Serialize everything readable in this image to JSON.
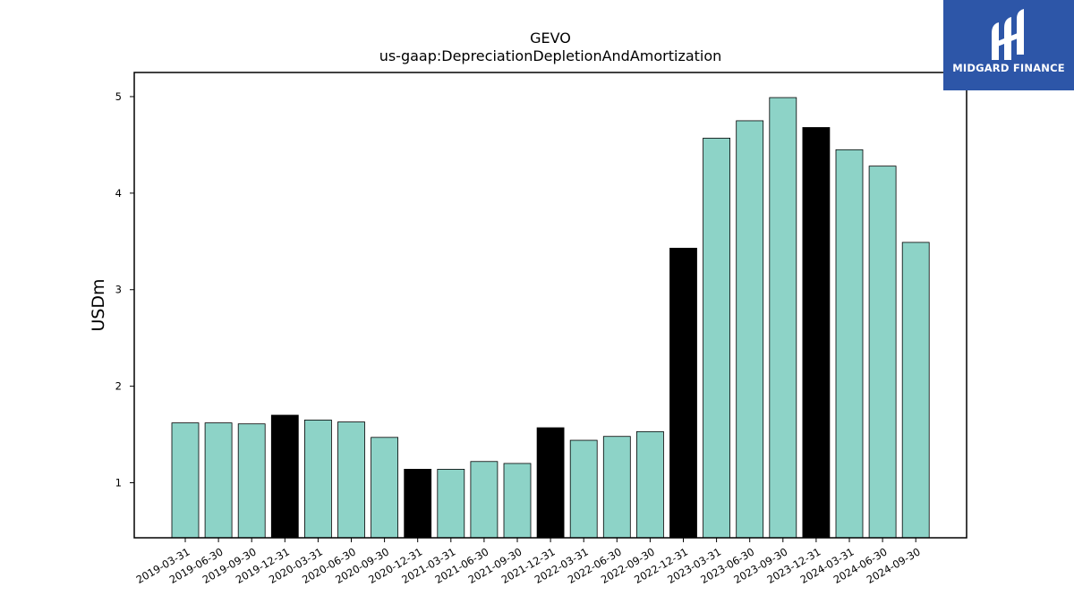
{
  "chart_data": {
    "type": "bar",
    "title": "GEVO",
    "subtitle": "us-gaap:DepreciationDepletionAndAmortization",
    "ylabel": "USDm",
    "xlabel": "",
    "ylim": [
      0.43,
      5.25
    ],
    "yticks": [
      1,
      2,
      3,
      4,
      5
    ],
    "categories": [
      "2019-03-31",
      "2019-06-30",
      "2019-09-30",
      "2019-12-31",
      "2020-03-31",
      "2020-06-30",
      "2020-09-30",
      "2020-12-31",
      "2021-03-31",
      "2021-06-30",
      "2021-09-30",
      "2021-12-31",
      "2022-03-31",
      "2022-06-30",
      "2022-09-30",
      "2022-12-31",
      "2023-03-31",
      "2023-06-30",
      "2023-09-30",
      "2023-12-31",
      "2024-03-31",
      "2024-06-30",
      "2024-09-30"
    ],
    "values": [
      1.62,
      1.62,
      1.61,
      1.7,
      1.65,
      1.63,
      1.47,
      1.14,
      1.14,
      1.22,
      1.2,
      1.57,
      1.44,
      1.48,
      1.53,
      3.43,
      4.57,
      4.75,
      4.99,
      4.68,
      4.45,
      4.28,
      3.49
    ],
    "highlighted": [
      "2019-12-31",
      "2020-12-31",
      "2021-12-31",
      "2022-12-31",
      "2023-12-31"
    ],
    "grid": false,
    "colors": {
      "bar": "#8dd3c7",
      "highlight": "#000000",
      "edge": "#000000"
    }
  },
  "logo": {
    "text": "MIDGARD FINANCE",
    "background": "#2d56a8"
  }
}
